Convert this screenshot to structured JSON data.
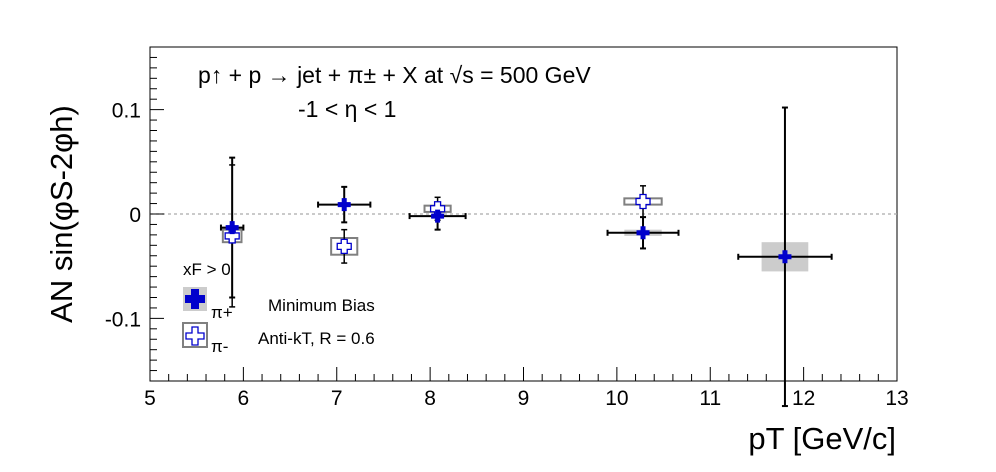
{
  "chart_data": {
    "type": "scatter",
    "title_line1": "p↑ + p → jet + π± + X at √s = 500 GeV",
    "title_line2": "-1 < η < 1",
    "xlabel": "pT [GeV/c]",
    "ylabel": "AN sin(φS-2φh)",
    "xlim": [
      5,
      13
    ],
    "ylim": [
      -0.16,
      0.16
    ],
    "x_ticks": [
      5,
      6,
      7,
      8,
      9,
      10,
      11,
      12,
      13
    ],
    "x_tick_labels": [
      "5",
      "6",
      "7",
      "8",
      "9",
      "10",
      "11",
      "12",
      "13"
    ],
    "y_ticks": [
      -0.1,
      0,
      0.1
    ],
    "y_tick_labels": [
      "-0.1",
      "0",
      "0.1"
    ],
    "zero_line": true,
    "legend": {
      "header": "xF > 0",
      "entries": [
        "π+",
        "π-"
      ],
      "notes": [
        "Minimum Bias",
        "Anti-kT, R = 0.6"
      ]
    },
    "series": [
      {
        "name": "π+",
        "color": "#0000cc",
        "marker": "filled-cross",
        "points": [
          {
            "x": 5.88,
            "y": -0.013,
            "x_err": 0.12,
            "y_err": 0.067,
            "sys_x": 0.06,
            "sys_y": 0.002
          },
          {
            "x": 7.08,
            "y": 0.009,
            "x_err": 0.28,
            "y_err": 0.017,
            "sys_x": 0.06,
            "sys_y": 0.002
          },
          {
            "x": 8.08,
            "y": -0.002,
            "x_err": 0.3,
            "y_err": 0.013,
            "sys_x": 0.06,
            "sys_y": 0.002
          },
          {
            "x": 10.28,
            "y": -0.018,
            "x_err": 0.38,
            "y_err": 0.015,
            "sys_x": 0.2,
            "sys_y": 0.003
          },
          {
            "x": 11.8,
            "y": -0.041,
            "x_err": 0.5,
            "y_err": 0.143,
            "sys_x": 0.25,
            "sys_y": 0.014
          }
        ]
      },
      {
        "name": "π-",
        "color": "#808080",
        "marker": "open-cross",
        "points": [
          {
            "x": 5.88,
            "y": -0.021,
            "x_err": 0,
            "y_err": 0.068,
            "sys_x": 0.1,
            "sys_y": 0.006
          },
          {
            "x": 7.08,
            "y": -0.031,
            "x_err": 0,
            "y_err": 0.016,
            "sys_x": 0.14,
            "sys_y": 0.008
          },
          {
            "x": 8.08,
            "y": 0.005,
            "x_err": 0,
            "y_err": 0.011,
            "sys_x": 0.14,
            "sys_y": 0.003
          },
          {
            "x": 10.28,
            "y": 0.012,
            "x_err": 0,
            "y_err": 0.015,
            "sys_x": 0.2,
            "sys_y": 0.003
          }
        ]
      }
    ]
  }
}
